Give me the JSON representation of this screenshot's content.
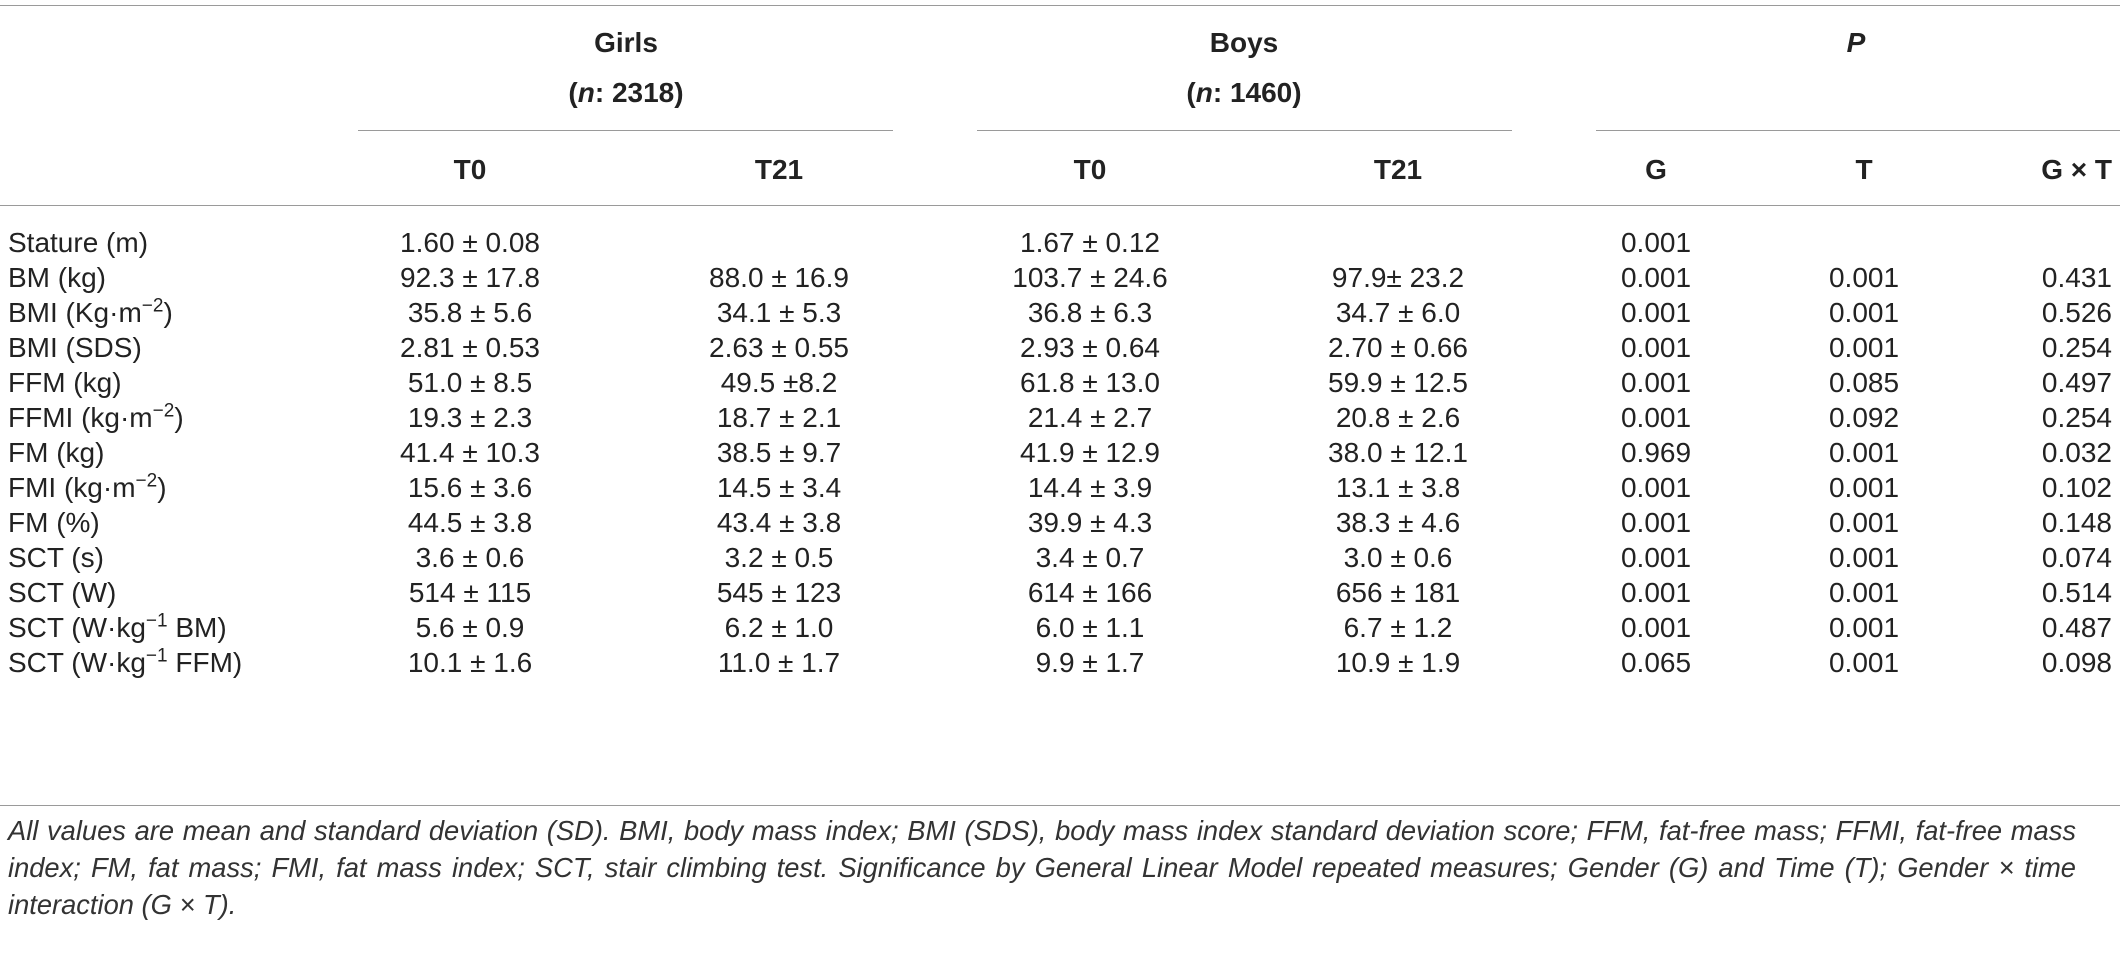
{
  "header": {
    "girls": {
      "label": "Girls",
      "n_prefix": "(",
      "n_italic": "n",
      "n_suffix": ": 2318)"
    },
    "boys": {
      "label": "Boys",
      "n_prefix": "(",
      "n_italic": "n",
      "n_suffix": ": 1460)"
    },
    "p": {
      "label": "P"
    },
    "sub": [
      "T0",
      "T21",
      "T0",
      "T21",
      "G",
      "T",
      "G × T"
    ]
  },
  "rows": [
    {
      "label": "Stature (m)",
      "cells": [
        "1.60 ± 0.08",
        "",
        "1.67 ± 0.12",
        "",
        "0.001",
        "",
        ""
      ]
    },
    {
      "label": "BM (kg)",
      "cells": [
        "92.3 ± 17.8",
        "88.0 ± 16.9",
        "103.7 ± 24.6",
        "97.9± 23.2",
        "0.001",
        "0.001",
        "0.431"
      ]
    },
    {
      "label": "BMI (Kg·m",
      "sup": "−2",
      "after": ")",
      "cells": [
        "35.8 ± 5.6",
        "34.1 ± 5.3",
        "36.8 ± 6.3",
        "34.7 ± 6.0",
        "0.001",
        "0.001",
        "0.526"
      ]
    },
    {
      "label": "BMI (SDS)",
      "cells": [
        "2.81 ± 0.53",
        "2.63 ± 0.55",
        "2.93 ± 0.64",
        "2.70 ± 0.66",
        "0.001",
        "0.001",
        "0.254"
      ]
    },
    {
      "label": "FFM (kg)",
      "cells": [
        "51.0 ± 8.5",
        "49.5 ±8.2",
        "61.8 ± 13.0",
        "59.9 ± 12.5",
        "0.001",
        "0.085",
        "0.497"
      ]
    },
    {
      "label": "FFMI (kg·m",
      "sup": "−2",
      "after": ")",
      "cells": [
        "19.3 ± 2.3",
        "18.7 ± 2.1",
        "21.4 ± 2.7",
        "20.8 ± 2.6",
        "0.001",
        "0.092",
        "0.254"
      ]
    },
    {
      "label": "FM (kg)",
      "cells": [
        "41.4 ± 10.3",
        "38.5 ± 9.7",
        "41.9 ± 12.9",
        "38.0 ± 12.1",
        "0.969",
        "0.001",
        "0.032"
      ]
    },
    {
      "label": "FMI (kg·m",
      "sup": "−2",
      "after": ")",
      "cells": [
        "15.6 ± 3.6",
        "14.5 ± 3.4",
        "14.4 ± 3.9",
        "13.1 ± 3.8",
        "0.001",
        "0.001",
        "0.102"
      ]
    },
    {
      "label": "FM (%)",
      "cells": [
        "44.5 ± 3.8",
        "43.4 ± 3.8",
        "39.9 ± 4.3",
        "38.3 ± 4.6",
        "0.001",
        "0.001",
        "0.148"
      ]
    },
    {
      "label": "SCT (s)",
      "cells": [
        "3.6 ± 0.6",
        "3.2 ± 0.5",
        "3.4 ± 0.7",
        "3.0 ± 0.6",
        "0.001",
        "0.001",
        "0.074"
      ]
    },
    {
      "label": "SCT (W)",
      "cells": [
        "514 ± 115",
        "545 ± 123",
        "614 ± 166",
        "656 ± 181",
        "0.001",
        "0.001",
        "0.514"
      ]
    },
    {
      "label": "SCT (W·kg",
      "sup": "−1",
      "after": " BM)",
      "cells": [
        "5.6 ± 0.9",
        "6.2 ± 1.0",
        "6.0 ± 1.1",
        "6.7 ± 1.2",
        "0.001",
        "0.001",
        "0.487"
      ]
    },
    {
      "label": "SCT (W·kg",
      "sup": "−1",
      "after": " FFM)",
      "cells": [
        "10.1 ± 1.6",
        "11.0 ± 1.7",
        "9.9 ± 1.7",
        "10.9 ± 1.9",
        "0.065",
        "0.001",
        "0.098"
      ]
    }
  ],
  "footnote": "All values are mean and standard deviation (SD). BMI, body mass index; BMI (SDS), body mass index standard deviation score; FFM, fat-free mass; FFMI, fat-free mass index; FM, fat mass; FMI, fat mass index; SCT, stair climbing test. Significance by General Linear Model repeated measures; Gender (G) and Time (T); Gender × time interaction (G × T)."
}
